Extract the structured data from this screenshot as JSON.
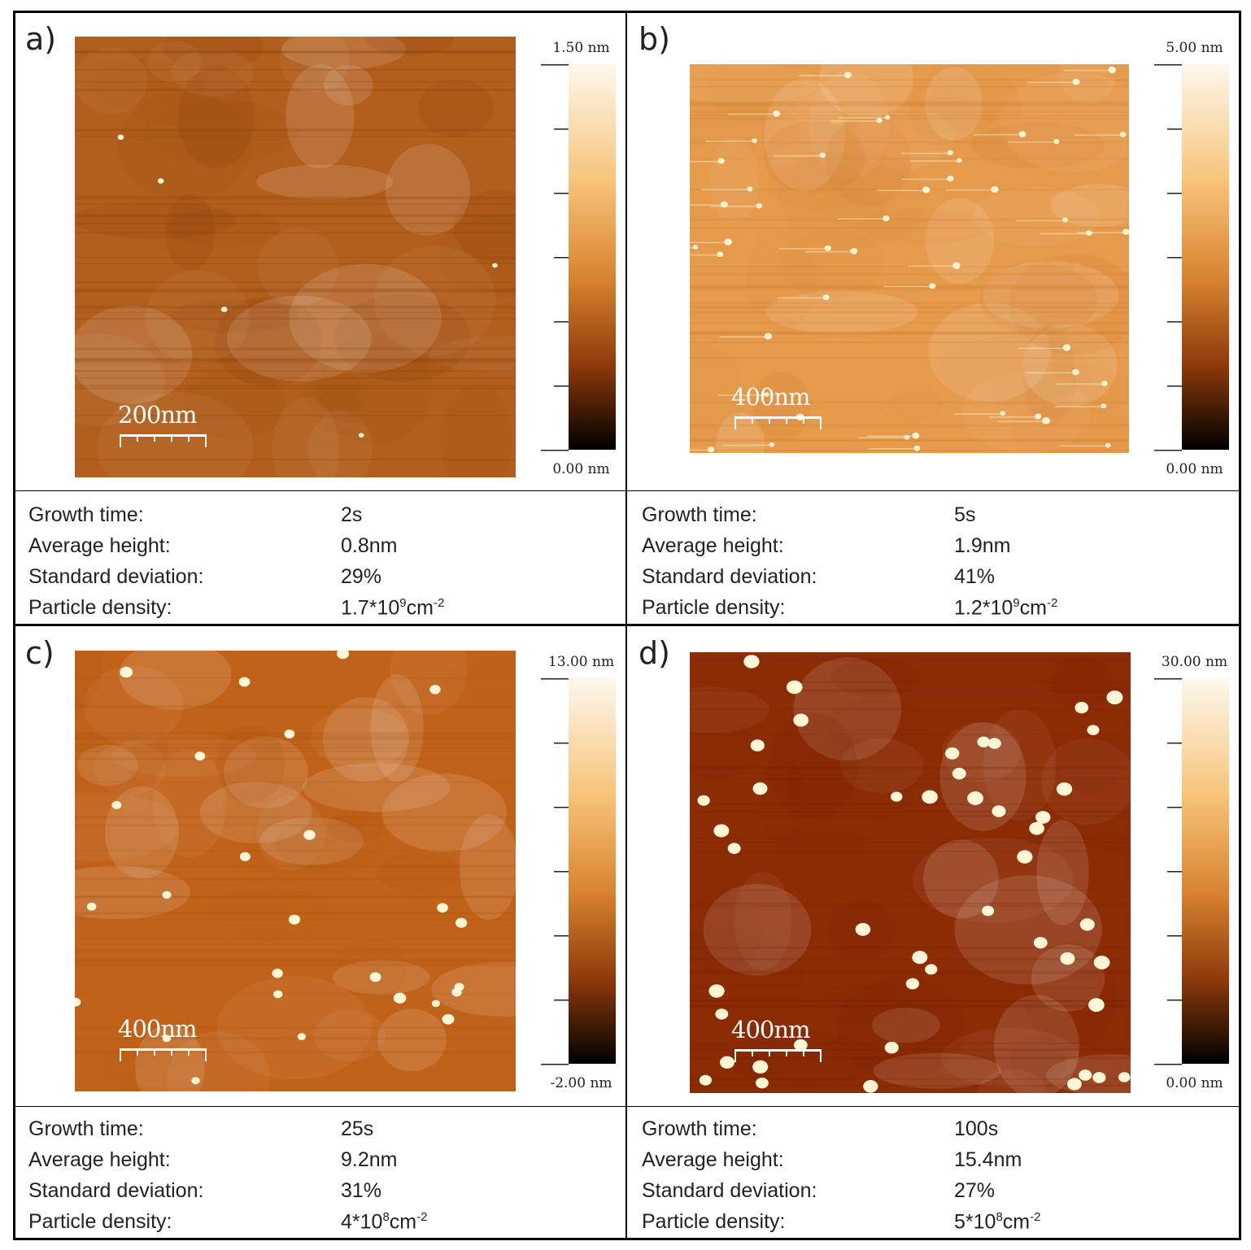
{
  "panels": [
    {
      "letter": "a)",
      "scale_label": "200nm",
      "colorbar": {
        "max": "1.50 nm",
        "min": "0.00 nm"
      },
      "image": {
        "base_color": "#b25e1c",
        "noise_dark": "#7a3508",
        "particles": "few, small"
      },
      "stats": {
        "growth_label": "Growth  time:",
        "growth_value": "2s",
        "height_label": "Average height:",
        "height_value": "0.8nm",
        "std_label": "Standard deviation:",
        "std_value": "29%",
        "density_label": "Particle density:",
        "density_mantissa": "1.7*10",
        "density_exp": "9",
        "density_unit": "cm",
        "density_unit_exp": "-2"
      }
    },
    {
      "letter": "b)",
      "scale_label": "400nm",
      "colorbar": {
        "max": "5.00 nm",
        "min": "0.00 nm"
      },
      "image": {
        "base_color": "#e69a4c",
        "noise_dark": "#c67426",
        "particles": "many, small with streaks"
      },
      "stats": {
        "growth_label": "Growth  time:",
        "growth_value": "5s",
        "height_label": "Average height:",
        "height_value": "1.9nm",
        "std_label": "Standard deviation:",
        "std_value": "41%",
        "density_label": "Particle density:",
        "density_mantissa": "1.2*10",
        "density_exp": "9",
        "density_unit": "cm",
        "density_unit_exp": "-2"
      }
    },
    {
      "letter": "c)",
      "scale_label": "400nm",
      "colorbar": {
        "max": "13.00 nm",
        "min": "-2.00 nm"
      },
      "image": {
        "base_color": "#c1621a",
        "noise_dark": "#a24e10",
        "particles": "medium"
      },
      "stats": {
        "growth_label": "Growth  time:",
        "growth_value": "25s",
        "height_label": "Average height:",
        "height_value": "9.2nm",
        "std_label": "Standard deviation:",
        "std_value": "31%",
        "density_label": "Particle density:",
        "density_mantissa": "4*10",
        "density_exp": "8",
        "density_unit": "cm",
        "density_unit_exp": "-2"
      }
    },
    {
      "letter": "d)",
      "scale_label": "400nm",
      "colorbar": {
        "max": "30.00 nm",
        "min": "0.00 nm"
      },
      "image": {
        "base_color": "#8c2c05",
        "noise_dark": "#701e02",
        "particles": "large"
      },
      "stats": {
        "growth_label": "Growth  time:",
        "growth_value": "100s",
        "height_label": "Average height:",
        "height_value": "15.4nm",
        "std_label": "Standard deviation:",
        "std_value": "27%",
        "density_label": "Particle density:",
        "density_mantissa": "5*10",
        "density_exp": "8",
        "density_unit": "cm",
        "density_unit_exp": "-2"
      }
    }
  ],
  "colors": {
    "border": "#000000",
    "text": "#222222",
    "colorbar_top": "#fdf6e8",
    "colorbar_bottom": "#000000"
  }
}
